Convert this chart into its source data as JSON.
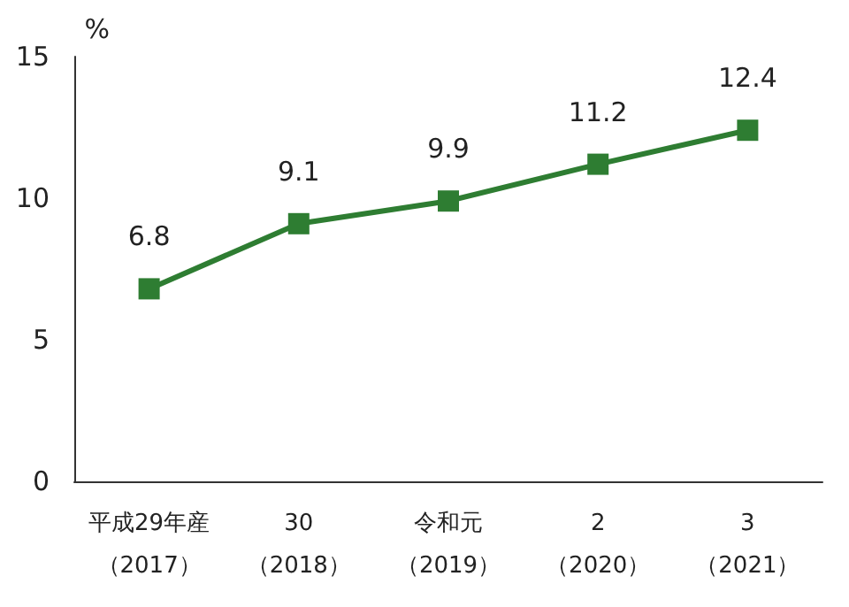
{
  "chart_data": {
    "type": "line",
    "ylabel": "%",
    "categories": [
      "平成29年産（2017）",
      "30（2018）",
      "令和元（2019）",
      "2（2020）",
      "3（2021）"
    ],
    "series": [
      {
        "color": "#2e7d32",
        "values": [
          6.8,
          9.1,
          9.9,
          11.2,
          12.4
        ]
      }
    ],
    "ylim": [
      0,
      15
    ],
    "yticks": [
      0,
      5,
      10,
      15
    ],
    "grid": false,
    "marker": "square",
    "line_style": "solid",
    "data_labels": true
  }
}
